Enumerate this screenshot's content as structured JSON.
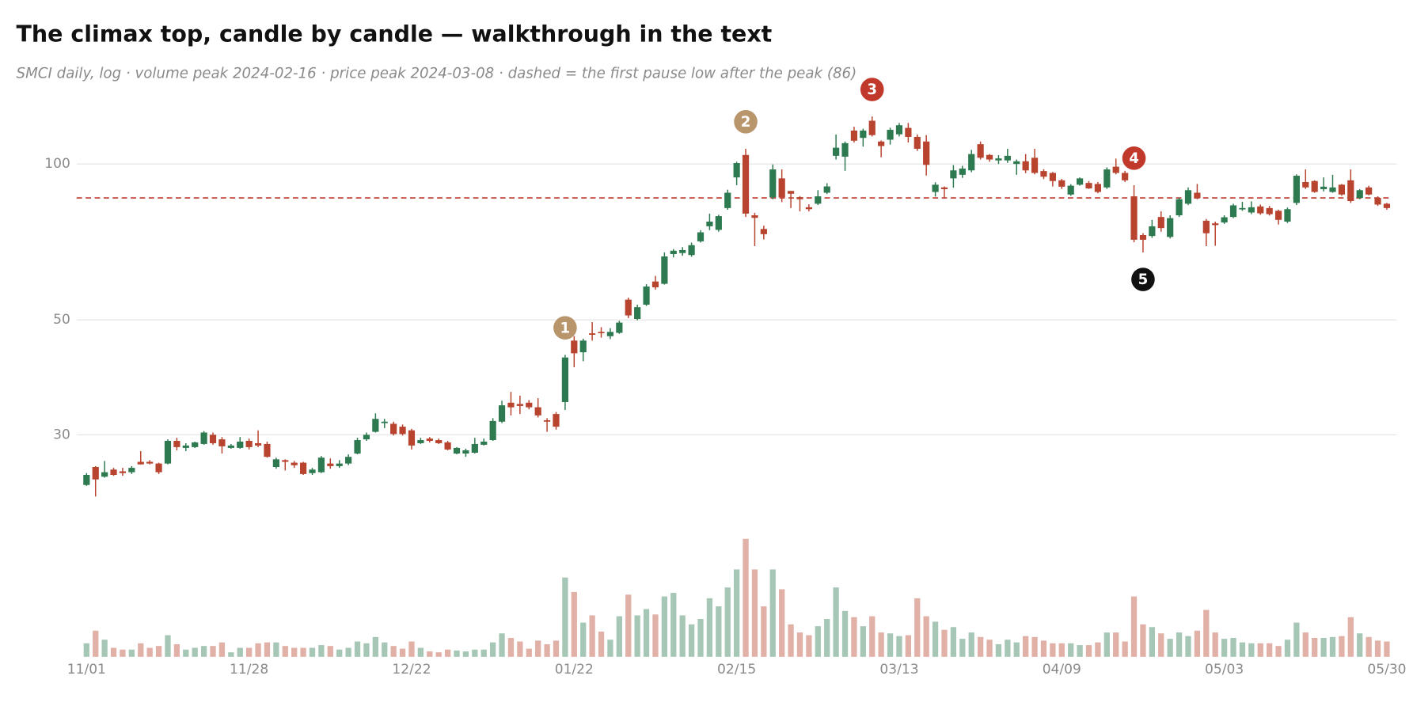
{
  "chart_data": {
    "type": "candlestick",
    "title": "The climax top, candle by candle — walkthrough in the text",
    "subtitle": "SMCI daily, log · volume peak 2024-02-16 · price peak 2024-03-08 · dashed = the first pause low after the peak (86)",
    "categories": [
      "11/01",
      null,
      null,
      null,
      null,
      null,
      null,
      null,
      null,
      null,
      null,
      null,
      null,
      null,
      null,
      null,
      null,
      null,
      "11/28",
      null,
      null,
      null,
      null,
      null,
      null,
      null,
      null,
      null,
      null,
      null,
      null,
      null,
      null,
      null,
      null,
      null,
      "12/22",
      null,
      null,
      null,
      null,
      null,
      null,
      null,
      null,
      null,
      null,
      null,
      null,
      null,
      null,
      null,
      null,
      null,
      "01/22",
      null,
      null,
      null,
      null,
      null,
      null,
      null,
      null,
      null,
      null,
      null,
      null,
      null,
      null,
      null,
      null,
      null,
      "02/15",
      null,
      null,
      null,
      null,
      null,
      null,
      null,
      null,
      null,
      null,
      null,
      null,
      null,
      null,
      null,
      null,
      null,
      "03/13",
      null,
      null,
      null,
      null,
      null,
      null,
      null,
      null,
      null,
      null,
      null,
      null,
      null,
      null,
      null,
      null,
      null,
      "04/09",
      null,
      null,
      null,
      null,
      null,
      null,
      null,
      null,
      null,
      null,
      null,
      null,
      null,
      null,
      null,
      null,
      null,
      "05/03",
      null,
      null,
      null,
      null,
      null,
      null,
      null,
      null,
      null,
      null,
      null,
      null,
      null,
      null,
      null,
      null,
      null,
      "05/30"
    ],
    "open": [
      24.0,
      26.0,
      24.9,
      25.7,
      25.5,
      25.4,
      26.6,
      26.6,
      26.4,
      26.4,
      29.2,
      28.3,
      28.4,
      28.8,
      30.0,
      29.4,
      28.3,
      28.3,
      29.2,
      28.9,
      28.8,
      26.0,
      26.8,
      26.5,
      26.5,
      25.3,
      25.4,
      26.4,
      26.1,
      26.4,
      27.6,
      29.4,
      30.4,
      31.6,
      31.5,
      31.1,
      30.6,
      28.9,
      29.5,
      29.3,
      29.0,
      27.6,
      27.6,
      27.7,
      28.7,
      29.3,
      31.8,
      34.6,
      34.4,
      34.6,
      33.9,
      32.0,
      32.9,
      34.7,
      45.6,
      43.3,
      47.1,
      47.4,
      46.5,
      47.2,
      54.7,
      50.2,
      53.5,
      59.3,
      58.7,
      67.0,
      67.3,
      66.7,
      70.9,
      75.8,
      74.6,
      82.2,
      94.2,
      104.1,
      79.6,
      74.9,
      86.2,
      93.8,
      88.7,
      86.3,
      82.5,
      83.8,
      88.0,
      103.7,
      103.3,
      116,
      112.3,
      121.2,
      110.5,
      111.4,
      114.1,
      117.4,
      112.8,
      110.5,
      88.3,
      90.1,
      93.8,
      95.3,
      97.2,
      109.2,
      104.1,
      101.6,
      101.6,
      100,
      101.2,
      102.8,
      96.9,
      96.1,
      93.0,
      87.3,
      91.2,
      91.9,
      91.5,
      90.1,
      98.8,
      96.1,
      86.6,
      72.9,
      72.6,
      79.0,
      72.3,
      79.6,
      83.8,
      88.0,
      77.7,
      76.8,
      77.1,
      79.0,
      81.8,
      80.6,
      82.8,
      82.2,
      81.2,
      77.4,
      84.1,
      92.3,
      92.7,
      89.4,
      88.3,
      91.2,
      93.0,
      86.0,
      90.1,
      86.0,
      83.8
    ],
    "high": [
      25.3,
      26.1,
      26.7,
      25.9,
      25.9,
      26.1,
      27.9,
      26.8,
      26.5,
      29.4,
      29.6,
      28.9,
      29.1,
      30.5,
      30.3,
      29.7,
      28.8,
      29.7,
      29.5,
      30.6,
      29.1,
      27.1,
      26.9,
      26.7,
      26.6,
      25.9,
      27.3,
      27.0,
      26.8,
      27.5,
      29.6,
      30.3,
      33.0,
      32.2,
      31.8,
      31.4,
      30.8,
      29.6,
      29.7,
      29.5,
      29.2,
      28.4,
      28.2,
      29.6,
      29.5,
      32.3,
      34.9,
      36.3,
      35.7,
      35.0,
      35.3,
      32.3,
      33.2,
      42.8,
      46.5,
      46.0,
      49.5,
      48.4,
      48.2,
      49.8,
      55.2,
      53.5,
      58.6,
      60.8,
      67.5,
      68.5,
      69.1,
      70.5,
      74.5,
      80.2,
      79.8,
      89.2,
      101,
      107,
      80.5,
      76.0,
      99.8,
      97.6,
      88.7,
      86.7,
      83.6,
      89.0,
      91.8,
      114,
      110.5,
      118,
      117,
      123.5,
      111,
      117.5,
      120,
      120,
      114,
      113.7,
      92.2,
      90.5,
      99.5,
      99.2,
      106.5,
      110.5,
      104.5,
      104,
      107,
      102,
      104.5,
      107,
      97.7,
      96.5,
      93.6,
      91.4,
      94.2,
      92.7,
      92.3,
      98.5,
      102.4,
      97.0,
      91.0,
      73.5,
      78.0,
      81.0,
      79.6,
      86.1,
      90.1,
      91.5,
      78.3,
      77.4,
      79.6,
      83.8,
      84.5,
      84.7,
      83.5,
      83.0,
      81.6,
      82.4,
      95.5,
      97.6,
      93.0,
      94.2,
      95.3,
      91.5,
      97.6,
      89.4,
      90.8,
      86.6,
      84.1
    ],
    "low": [
      23.9,
      22.8,
      24.8,
      25.0,
      25.0,
      25.2,
      26.3,
      26.3,
      25.2,
      26.3,
      28.0,
      27.9,
      28.3,
      28.7,
      28.7,
      27.6,
      28.2,
      28.2,
      28.1,
      28.4,
      27.1,
      25.8,
      25.6,
      25.9,
      25.1,
      25.1,
      25.3,
      25.8,
      25.9,
      26.2,
      27.5,
      29.2,
      30.3,
      30.9,
      29.9,
      29.9,
      28.1,
      28.8,
      29.0,
      28.8,
      28.0,
      27.5,
      27.2,
      27.6,
      28.6,
      29.2,
      31.6,
      32.7,
      32.9,
      33.6,
      32.4,
      30.4,
      30.7,
      33.5,
      40.5,
      41.6,
      45.6,
      46.2,
      45.9,
      47.0,
      50.4,
      49.9,
      53.2,
      57.2,
      58.5,
      66.0,
      66.5,
      66.2,
      70.5,
      74.5,
      74.0,
      81.6,
      91.0,
      79.0,
      69.4,
      71.5,
      85.5,
      84.4,
      82.2,
      81.0,
      81.0,
      83.3,
      87.5,
      102,
      97.0,
      110,
      108,
      113,
      103,
      109,
      113,
      110,
      106,
      95,
      86.5,
      85.9,
      90.0,
      94.0,
      96.4,
      102,
      101,
      100,
      100.5,
      95.3,
      96.0,
      95.5,
      93.5,
      90.5,
      89.5,
      86.8,
      90.8,
      89.5,
      87.8,
      89.5,
      95.5,
      92.3,
      70.6,
      67.5,
      72.0,
      74.0,
      71.8,
      79.0,
      83.3,
      85.5,
      69.4,
      69.5,
      76.6,
      78.6,
      81.2,
      80.0,
      79.8,
      79.5,
      76.4,
      76.9,
      83.3,
      89.5,
      88.0,
      88.5,
      88.0,
      86.8,
      84.1,
      85.5,
      87.0,
      83.0,
      81.6
    ],
    "close": [
      25.1,
      24.6,
      25.4,
      25.1,
      25.3,
      25.9,
      26.3,
      26.4,
      25.4,
      29.2,
      28.4,
      28.6,
      29.0,
      30.3,
      28.9,
      28.5,
      28.6,
      29.1,
      28.4,
      28.6,
      27.2,
      26.9,
      26.6,
      26.2,
      25.2,
      25.7,
      27.1,
      26.1,
      26.4,
      27.2,
      29.3,
      30.0,
      32.2,
      31.8,
      30.1,
      30.1,
      28.6,
      29.3,
      29.2,
      28.9,
      28.1,
      28.3,
      28.0,
      28.8,
      29.1,
      31.9,
      34.2,
      33.9,
      34.1,
      33.9,
      32.7,
      31.8,
      31.1,
      42.3,
      43.1,
      45.6,
      46.8,
      47.2,
      47.4,
      49.4,
      51.0,
      52.9,
      58.0,
      57.8,
      66.3,
      68.0,
      68.2,
      69.7,
      73.8,
      77.4,
      79.3,
      88.0,
      100.4,
      80.2,
      78.7,
      73.2,
      97.6,
      86.2,
      87.6,
      85.5,
      81.8,
      86.6,
      90.5,
      107.5,
      109.7,
      110.9,
      116,
      113.7,
      108.3,
      116.4,
      118.8,
      112.8,
      107,
      99.6,
      91.2,
      89.4,
      97.2,
      98.0,
      104.5,
      102.8,
      102.0,
      102.5,
      103.7,
      101.2,
      97.2,
      96.1,
      94.5,
      92.7,
      90.4,
      90.8,
      93.8,
      89.7,
      88.3,
      97.6,
      96.1,
      93.0,
      71.4,
      71.4,
      75.8,
      75.2,
      78.6,
      85.5,
      89.0,
      85.9,
      73.5,
      76.2,
      78.9,
      83.2,
      82.2,
      82.5,
      80.3,
      80.0,
      78.0,
      81.8,
      94.9,
      90.1,
      88.3,
      90.4,
      90.1,
      87.3,
      84.8,
      89.0,
      87.3,
      83.5,
      82.2
    ],
    "volume": [
      15,
      29,
      19,
      10,
      8,
      8,
      15,
      10,
      12,
      24,
      14,
      8,
      10,
      12,
      12,
      16,
      5,
      10,
      10,
      15,
      16,
      16,
      12,
      10,
      10,
      10,
      13,
      12,
      8,
      10,
      17,
      15,
      22,
      16,
      12,
      9,
      17,
      10,
      6,
      5,
      8,
      7,
      6,
      8,
      8,
      16,
      26,
      21,
      17,
      9,
      18,
      14,
      18,
      88,
      72,
      38,
      46,
      28,
      19,
      45,
      69,
      46,
      53,
      47,
      67,
      71,
      46,
      36,
      42,
      65,
      56,
      77,
      97,
      131,
      97,
      56,
      97,
      75,
      36,
      27,
      24,
      34,
      42,
      77,
      51,
      44,
      34,
      45,
      27,
      26,
      23,
      24,
      65,
      45,
      39,
      30,
      33,
      20,
      27,
      22,
      19,
      14,
      19,
      16,
      23,
      22,
      18,
      15,
      15,
      15,
      13,
      13,
      16,
      27,
      27,
      17,
      67,
      36,
      33,
      26,
      20,
      27,
      23,
      29,
      52,
      27,
      20,
      21,
      16,
      15,
      15,
      15,
      12,
      19,
      38,
      27,
      21,
      21,
      22,
      23,
      44,
      26,
      22,
      18,
      17
    ],
    "vlim": [
      0,
      140
    ],
    "up_color": "#2e7a50",
    "down_color": "#b8432e",
    "volume_opacity": 0.42,
    "ylim": [
      22,
      140
    ],
    "yticks": [
      30,
      50,
      100
    ],
    "log_scale": true,
    "grid": true,
    "reference_line": {
      "value": 86,
      "color": "#c0392b",
      "style": "dashed"
    },
    "annotations": [
      {
        "label": "1",
        "index": 53,
        "position": "above",
        "color": "#b8956a"
      },
      {
        "label": "2",
        "index": 73,
        "position": "above",
        "color": "#b8956a"
      },
      {
        "label": "3",
        "index": 87,
        "position": "above",
        "color": "#c0392b"
      },
      {
        "label": "4",
        "index": 116,
        "position": "above",
        "color": "#c0392b"
      },
      {
        "label": "5",
        "index": 117,
        "position": "below",
        "color": "#111111"
      }
    ]
  }
}
